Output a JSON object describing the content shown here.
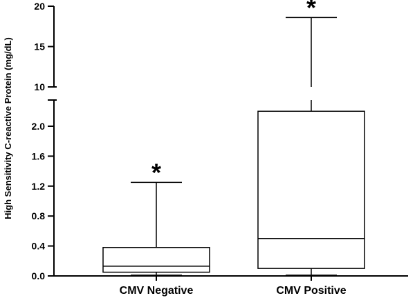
{
  "chart_data": {
    "type": "box",
    "ylabel": "High Sensitivity C-reactive Protein (mg/dL)",
    "y_axis_broken": true,
    "y_segments": [
      {
        "range": [
          0,
          2.35
        ],
        "ticks": [
          "0.0",
          "0.4",
          "0.8",
          "1.2",
          "1.6",
          "2.0"
        ],
        "tick_values": [
          0,
          0.4,
          0.8,
          1.2,
          1.6,
          2.0
        ]
      },
      {
        "range": [
          10,
          20
        ],
        "ticks": [
          "10",
          "15",
          "20"
        ],
        "tick_values": [
          10,
          15,
          20
        ]
      }
    ],
    "categories": [
      "CMV Negative",
      "CMV Positive"
    ],
    "boxes": [
      {
        "category": "CMV Negative",
        "whisker_low": 0.01,
        "q1": 0.05,
        "median": 0.13,
        "q3": 0.38,
        "whisker_high": 1.25,
        "annotation": "*"
      },
      {
        "category": "CMV Positive",
        "whisker_low": 0.01,
        "q1": 0.1,
        "median": 0.5,
        "q3": 2.2,
        "whisker_high": 18.6,
        "annotation": "*"
      }
    ]
  }
}
